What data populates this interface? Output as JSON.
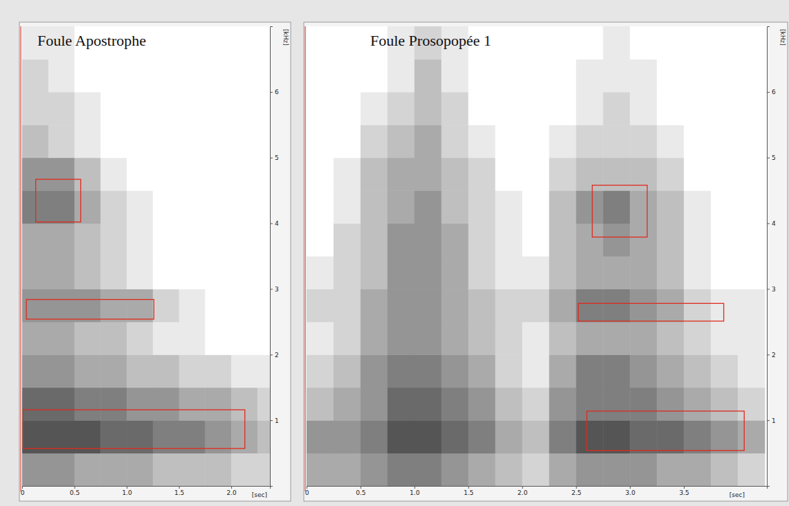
{
  "chart_data": [
    {
      "type": "heatmap",
      "title": "Foule Apostrophe",
      "x_label": "[sec]",
      "y_label": "[kHz]",
      "xlim": [
        0,
        2.37
      ],
      "ylim": [
        0,
        7
      ],
      "xticks": [
        0,
        0.5,
        {
          "value": 1,
          "label": "1.0"
        },
        1.5,
        {
          "value": 2,
          "label": "2.0"
        }
      ],
      "yticks": [
        1,
        2,
        3,
        4,
        5,
        6
      ],
      "color": "#2a2a2a",
      "zlim": [
        0,
        10
      ],
      "time_bins": [
        0,
        0.25,
        0.5,
        0.75,
        1,
        1.25,
        1.5,
        1.75,
        2,
        2.25,
        2.5
      ],
      "freq_bins": [
        0,
        0.5,
        1,
        1.5,
        2,
        2.5,
        3,
        3.5,
        4,
        4.5,
        5,
        5.5,
        6,
        6.5,
        7
      ],
      "cells": [
        [
          5,
          5,
          4,
          4,
          4,
          3,
          3,
          3,
          2,
          2
        ],
        [
          8,
          8,
          8,
          7,
          7,
          6,
          6,
          5,
          4,
          3
        ],
        [
          7,
          7,
          6,
          6,
          5,
          5,
          4,
          4,
          3,
          2
        ],
        [
          5,
          5,
          4,
          4,
          3,
          3,
          2,
          2,
          1,
          1
        ],
        [
          4,
          4,
          3,
          3,
          2,
          1,
          1,
          0,
          0,
          0
        ],
        [
          5,
          5,
          5,
          4,
          4,
          2,
          1,
          0,
          0,
          0
        ],
        [
          4,
          4,
          3,
          2,
          1,
          0,
          0,
          0,
          0,
          0
        ],
        [
          4,
          4,
          3,
          2,
          1,
          0,
          0,
          0,
          0,
          0
        ],
        [
          6,
          6,
          4,
          2,
          1,
          0,
          0,
          0,
          0,
          0
        ],
        [
          5,
          5,
          3,
          1,
          0,
          0,
          0,
          0,
          0,
          0
        ],
        [
          3,
          2,
          1,
          0,
          0,
          0,
          0,
          0,
          0,
          0
        ],
        [
          2,
          2,
          1,
          0,
          0,
          0,
          0,
          0,
          0,
          0
        ],
        [
          2,
          1,
          0,
          0,
          0,
          0,
          0,
          0,
          0,
          0
        ],
        [
          1,
          1,
          0,
          0,
          0,
          0,
          0,
          0,
          0,
          0
        ]
      ],
      "boxes": [
        {
          "x": [
            0.13,
            0.56
          ],
          "y": [
            4.02,
            4.67
          ],
          "color": "#e02a1e"
        },
        {
          "x": [
            0.04,
            1.26
          ],
          "y": [
            2.54,
            2.84
          ],
          "color": "#e02a1e"
        },
        {
          "x": [
            0.01,
            2.13
          ],
          "y": [
            0.57,
            1.16
          ],
          "color": "#e02a1e"
        }
      ]
    },
    {
      "type": "heatmap",
      "title": "Foule Prosopopée 1",
      "x_label": "[sec]",
      "y_label": "[kHz]",
      "xlim": [
        0,
        4.27
      ],
      "ylim": [
        0,
        7
      ],
      "xticks": [
        0,
        0.5,
        {
          "value": 1,
          "label": "1.0"
        },
        1.5,
        {
          "value": 2,
          "label": "2.0"
        },
        2.5,
        {
          "value": 3,
          "label": "3.0"
        },
        3.5
      ],
      "yticks": [
        1,
        2,
        3,
        4,
        5,
        6
      ],
      "color": "#2a2a2a",
      "zlim": [
        0,
        10
      ],
      "time_bins": [
        0,
        0.25,
        0.5,
        0.75,
        1,
        1.25,
        1.5,
        1.75,
        2,
        2.25,
        2.5,
        2.75,
        3,
        3.25,
        3.5,
        3.75,
        4,
        4.25
      ],
      "freq_bins": [
        0,
        0.5,
        1,
        1.5,
        2,
        2.5,
        3,
        3.5,
        4,
        4.5,
        5,
        5.5,
        6,
        6.5,
        7
      ],
      "cells": [
        [
          4,
          4,
          5,
          6,
          6,
          5,
          4,
          3,
          2,
          4,
          5,
          5,
          5,
          4,
          4,
          3,
          2
        ],
        [
          5,
          5,
          6,
          8,
          8,
          7,
          6,
          4,
          3,
          6,
          8,
          8,
          7,
          7,
          6,
          5,
          4
        ],
        [
          3,
          4,
          5,
          7,
          7,
          6,
          5,
          3,
          2,
          5,
          6,
          6,
          6,
          5,
          4,
          3,
          2
        ],
        [
          2,
          3,
          5,
          6,
          6,
          5,
          4,
          2,
          1,
          4,
          6,
          6,
          5,
          4,
          3,
          2,
          1
        ],
        [
          1,
          2,
          4,
          5,
          5,
          4,
          3,
          2,
          1,
          3,
          4,
          4,
          4,
          3,
          2,
          1,
          1
        ],
        [
          2,
          2,
          4,
          5,
          5,
          4,
          3,
          2,
          2,
          4,
          6,
          6,
          5,
          4,
          2,
          1,
          1
        ],
        [
          1,
          2,
          3,
          5,
          5,
          4,
          2,
          1,
          1,
          3,
          4,
          4,
          4,
          3,
          1,
          0,
          0
        ],
        [
          0,
          2,
          3,
          5,
          5,
          4,
          2,
          1,
          0,
          3,
          4,
          5,
          4,
          3,
          1,
          0,
          0
        ],
        [
          0,
          1,
          3,
          4,
          5,
          3,
          2,
          1,
          0,
          3,
          5,
          6,
          4,
          3,
          1,
          0,
          0
        ],
        [
          0,
          1,
          3,
          4,
          4,
          3,
          2,
          0,
          0,
          2,
          3,
          3,
          3,
          2,
          0,
          0,
          0
        ],
        [
          0,
          0,
          2,
          3,
          4,
          2,
          1,
          0,
          0,
          1,
          2,
          2,
          2,
          1,
          0,
          0,
          0
        ],
        [
          0,
          0,
          1,
          2,
          3,
          2,
          0,
          0,
          0,
          0,
          1,
          2,
          1,
          0,
          0,
          0,
          0
        ],
        [
          0,
          0,
          0,
          1,
          3,
          1,
          0,
          0,
          0,
          0,
          1,
          1,
          1,
          0,
          0,
          0,
          0
        ],
        [
          0,
          0,
          0,
          1,
          2,
          1,
          0,
          0,
          0,
          0,
          0,
          1,
          0,
          0,
          0,
          0,
          0
        ]
      ],
      "boxes": [
        {
          "x": [
            2.65,
            3.16
          ],
          "y": [
            3.79,
            4.58
          ],
          "color": "#e02a1e"
        },
        {
          "x": [
            2.52,
            3.87
          ],
          "y": [
            2.51,
            2.78
          ],
          "color": "#e02a1e"
        },
        {
          "x": [
            2.6,
            4.06
          ],
          "y": [
            0.54,
            1.14
          ],
          "color": "#e02a1e"
        }
      ]
    }
  ]
}
